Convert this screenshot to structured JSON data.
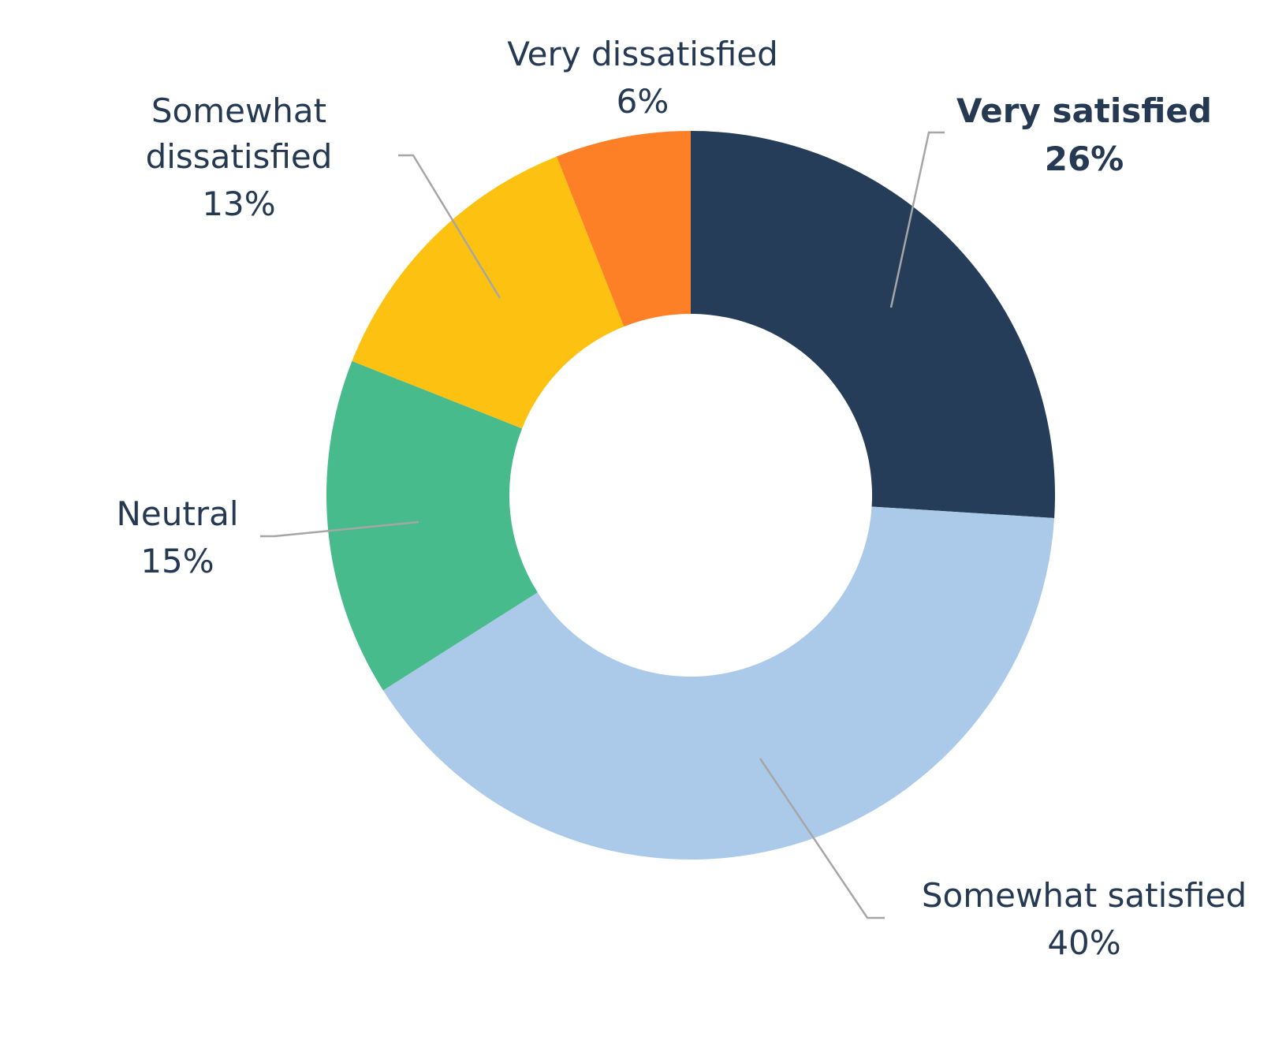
{
  "chart_data": {
    "type": "pie",
    "donut": true,
    "title": "",
    "start_angle_deg": 0,
    "direction": "clockwise",
    "slices": [
      {
        "label": "Very satisfied",
        "value": 26,
        "display": "26%",
        "color": "#253d58",
        "bold": true
      },
      {
        "label": "Somewhat satisfied",
        "value": 40,
        "display": "40%",
        "color": "#abcaea",
        "bold": false
      },
      {
        "label": "Neutral",
        "value": 15,
        "display": "15%",
        "color": "#47bb8b",
        "bold": false
      },
      {
        "label": "Somewhat dissatisfied",
        "value": 13,
        "display": "13%",
        "color": "#fdc112",
        "bold": false
      },
      {
        "label": "Very dissatisfied",
        "value": 6,
        "display": "6%",
        "color": "#fe8026",
        "bold": false
      }
    ],
    "legend": "none"
  },
  "colors": {
    "label_text": "#253a52",
    "leader_line": "#a6a6a6",
    "background": "#ffffff"
  }
}
